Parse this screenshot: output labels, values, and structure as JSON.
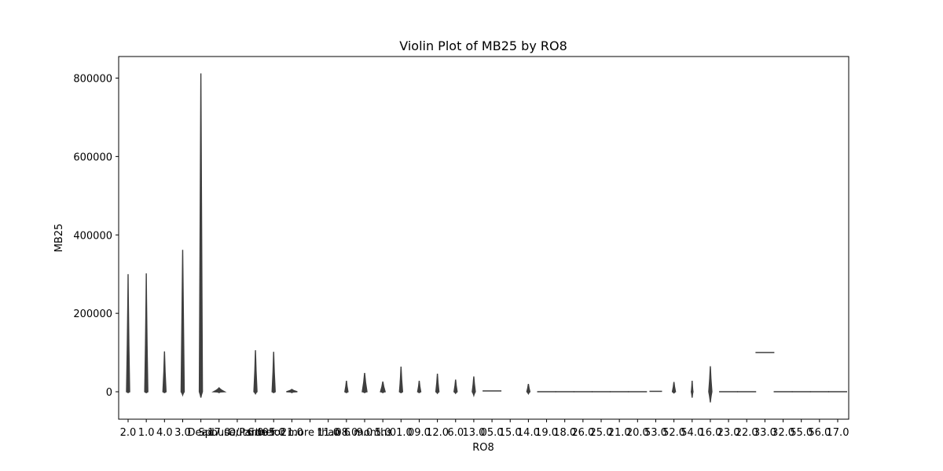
{
  "chart_data": {
    "type": "violin",
    "title": "Violin Plot of MB25 by RO8",
    "xlabel": "RO8",
    "ylabel": "MB25",
    "ylim": [
      -70000,
      855000
    ],
    "yticks": [
      0,
      200000,
      400000,
      600000,
      800000
    ],
    "ytick_labels": [
      "0",
      "200000",
      "400000",
      "600000",
      "800000"
    ],
    "grid": false,
    "legend": "none",
    "colors": {
      "violin": "#3f3f3f",
      "frame": "#000000"
    },
    "categories": [
      "2.0",
      "1.0",
      "4.0",
      "3.0",
      "Dead",
      "17.0",
      "Spouse/Partner",
      "6.0",
      "05.0",
      "21.0",
      "Outside for more than 6 months",
      "11.0",
      "08.0",
      "9.0",
      "5.0",
      "01.0",
      "09.0",
      "12.0",
      "6.0",
      "13.0",
      "05.0",
      "15.0",
      "14.0",
      "19.0",
      "18.0",
      "26.0",
      "25.0",
      "21.0",
      "20.0",
      "53.0",
      "52.0",
      "54.0",
      "16.0",
      "23.0",
      "22.0",
      "33.0",
      "32.0",
      "55.0",
      "56.0",
      "17.0"
    ],
    "violins": [
      {
        "category": "2.0",
        "min": 0,
        "max": 300000,
        "halfwidth": 2
      },
      {
        "category": "1.0",
        "min": -2000,
        "max": 302000,
        "halfwidth": 2
      },
      {
        "category": "4.0",
        "min": 0,
        "max": 103000,
        "halfwidth": 2
      },
      {
        "category": "3.0",
        "min": -8000,
        "max": 362000,
        "halfwidth": 2
      },
      {
        "category": "Dead",
        "min": -15000,
        "max": 812000,
        "halfwidth": 2
      },
      {
        "category": "17.0",
        "min": -1000,
        "max": 10000,
        "halfwidth": 7
      },
      {
        "category": "6.0",
        "min": -5000,
        "max": 106000,
        "halfwidth": 2
      },
      {
        "category": "05.0",
        "min": -1000,
        "max": 102000,
        "halfwidth": 2
      },
      {
        "category": "21.0",
        "min": -1000,
        "max": 6000,
        "halfwidth": 7
      },
      {
        "category": "08.0",
        "min": -1000,
        "max": 28000,
        "halfwidth": 2
      },
      {
        "category": "9.0",
        "min": -1000,
        "max": 48000,
        "halfwidth": 3
      },
      {
        "category": "5.0",
        "min": -1000,
        "max": 26000,
        "halfwidth": 3
      },
      {
        "category": "01.0",
        "min": -2000,
        "max": 64000,
        "halfwidth": 2
      },
      {
        "category": "09.0",
        "min": -1000,
        "max": 28000,
        "halfwidth": 2
      },
      {
        "category": "12.0",
        "min": -4000,
        "max": 46000,
        "halfwidth": 2
      },
      {
        "category": "6.0",
        "min": -4000,
        "max": 31000,
        "halfwidth": 2
      },
      {
        "category": "13.0",
        "min": -9000,
        "max": 39000,
        "halfwidth": 2
      },
      {
        "category": "05.0",
        "min": -1000,
        "max": 2000,
        "halfwidth": 12
      },
      {
        "category": "14.0",
        "min": -5000,
        "max": 20000,
        "halfwidth": 2
      },
      {
        "category": "19.0",
        "min": 0,
        "max": 0,
        "halfwidth": 12
      },
      {
        "category": "18.0",
        "min": 0,
        "max": 0,
        "halfwidth": 12
      },
      {
        "category": "26.0",
        "min": 0,
        "max": 0,
        "halfwidth": 12
      },
      {
        "category": "25.0",
        "min": 0,
        "max": 0,
        "halfwidth": 12
      },
      {
        "category": "21.0",
        "min": 0,
        "max": 0,
        "halfwidth": 12
      },
      {
        "category": "20.0",
        "min": 0,
        "max": 0,
        "halfwidth": 12
      },
      {
        "category": "53.0",
        "min": -1000,
        "max": 1000,
        "halfwidth": 8
      },
      {
        "category": "52.0",
        "min": -3000,
        "max": 25000,
        "halfwidth": 2
      },
      {
        "category": "54.0",
        "min": -15000,
        "max": 28000,
        "halfwidth": 1
      },
      {
        "category": "16.0",
        "min": -27000,
        "max": 65000,
        "halfwidth": 2
      },
      {
        "category": "23.0",
        "min": 0,
        "max": 0,
        "halfwidth": 12
      },
      {
        "category": "22.0",
        "min": 0,
        "max": 0,
        "halfwidth": 12
      },
      {
        "category": "33.0",
        "min": 100000,
        "max": 100000,
        "halfwidth": 12
      },
      {
        "category": "32.0",
        "min": 0,
        "max": 0,
        "halfwidth": 12
      },
      {
        "category": "55.0",
        "min": 0,
        "max": 0,
        "halfwidth": 12
      },
      {
        "category": "56.0",
        "min": 0,
        "max": 0,
        "halfwidth": 12
      },
      {
        "category": "17.0",
        "min": 0,
        "max": 0,
        "halfwidth": 12
      }
    ]
  }
}
